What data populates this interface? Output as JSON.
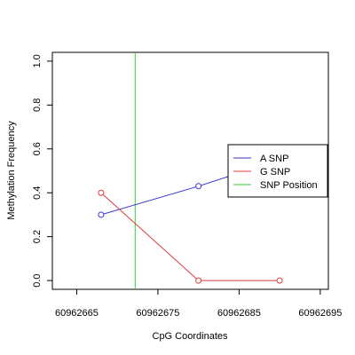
{
  "chart_data": {
    "type": "line",
    "title": "",
    "xlabel": "CpG Coordinates",
    "ylabel": "Methylation Frequency",
    "xlim": [
      60962662,
      60962696
    ],
    "ylim": [
      -0.04,
      1.04
    ],
    "x_ticks": [
      {
        "value": 60962665,
        "label": "60962665"
      },
      {
        "value": 60962675,
        "label": "60962675"
      },
      {
        "value": 60962685,
        "label": "60962685"
      },
      {
        "value": 60962695,
        "label": "60962695"
      }
    ],
    "y_ticks": [
      {
        "value": 0.0,
        "label": "0.0"
      },
      {
        "value": 0.2,
        "label": "0.2"
      },
      {
        "value": 0.4,
        "label": "0.4"
      },
      {
        "value": 0.6,
        "label": "0.6"
      },
      {
        "value": 0.8,
        "label": "0.8"
      },
      {
        "value": 1.0,
        "label": "1.0"
      }
    ],
    "series": [
      {
        "name": "A SNP",
        "color": "#3333cc",
        "points": [
          {
            "x": 60962668,
            "y": 0.3
          },
          {
            "x": 60962680,
            "y": 0.43
          },
          {
            "x": 60962690,
            "y": 0.55
          }
        ]
      },
      {
        "name": "G SNP",
        "color": "#e03c3c",
        "points": [
          {
            "x": 60962668,
            "y": 0.4
          },
          {
            "x": 60962680,
            "y": 0.0
          },
          {
            "x": 60962690,
            "y": 0.0
          }
        ]
      }
    ],
    "snp_position": {
      "name": "SNP Position",
      "x": 60962672.2,
      "color": "#33cc33"
    },
    "legend": {
      "placement": "right",
      "entries": [
        {
          "label": "A SNP",
          "color": "#3333cc"
        },
        {
          "label": "G SNP",
          "color": "#e03c3c"
        },
        {
          "label": "SNP Position",
          "color": "#33cc33"
        }
      ]
    },
    "grid": false
  }
}
